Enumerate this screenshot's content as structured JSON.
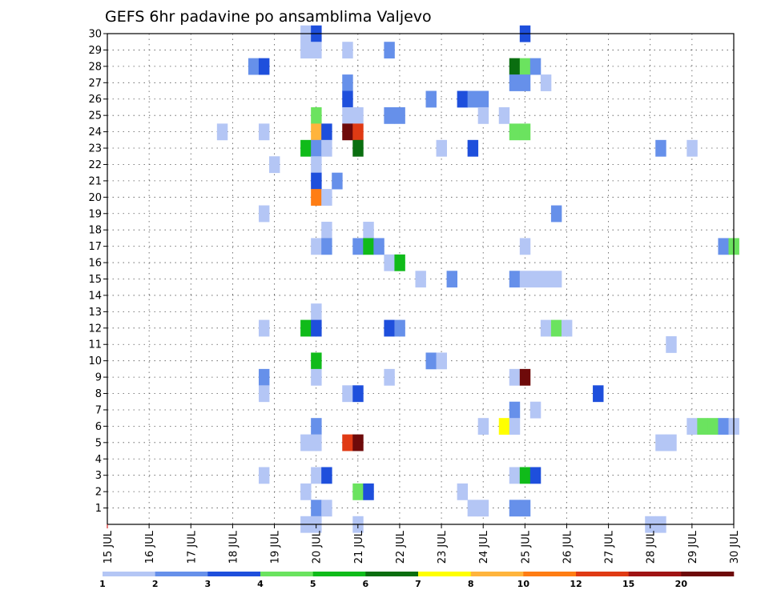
{
  "chart_data": {
    "type": "heatmap",
    "title": "GEFS 6hr padavine po ansamblima Valjevo",
    "x_tick_labels": [
      "15 JUL",
      "16 JUL",
      "17 JUL",
      "18 JUL",
      "19 JUL",
      "20 JUL",
      "21 JUL",
      "22 JUL",
      "23 JUL",
      "24 JUL",
      "25 JUL",
      "26 JUL",
      "27 JUL",
      "28 JUL",
      "29 JUL",
      "30 JUL"
    ],
    "x_range_days": [
      0,
      15
    ],
    "y_tick_labels": [
      1,
      2,
      3,
      4,
      5,
      6,
      7,
      8,
      9,
      10,
      11,
      12,
      13,
      14,
      15,
      16,
      17,
      18,
      19,
      20,
      21,
      22,
      23,
      24,
      25,
      26,
      27,
      28,
      29,
      30
    ],
    "y_range": [
      0,
      30
    ],
    "grid": true,
    "colorbar": {
      "labels": [
        1,
        2,
        3,
        4,
        5,
        6,
        7,
        8,
        10,
        12,
        15,
        20
      ],
      "colors": [
        "#b4c6f5",
        "#6690ea",
        "#1e4fdc",
        "#6be35f",
        "#10bb1a",
        "#0a6e10",
        "#ffff00",
        "#ffb43c",
        "#ff7d14",
        "#e03a14",
        "#a01414",
        "#6e0a0a"
      ]
    },
    "cells": [
      [
        30,
        4.75,
        0
      ],
      [
        30,
        5.0,
        2
      ],
      [
        30,
        10.0,
        2
      ],
      [
        29,
        4.75,
        0
      ],
      [
        29,
        5.0,
        0
      ],
      [
        29,
        5.75,
        0
      ],
      [
        29,
        6.75,
        1
      ],
      [
        28,
        3.5,
        1
      ],
      [
        28,
        3.75,
        2
      ],
      [
        28,
        9.75,
        5
      ],
      [
        28,
        10.0,
        3
      ],
      [
        28,
        10.25,
        1
      ],
      [
        27,
        5.75,
        1
      ],
      [
        27,
        9.75,
        1
      ],
      [
        27,
        10.0,
        1
      ],
      [
        27,
        10.5,
        0
      ],
      [
        26,
        5.75,
        2
      ],
      [
        26,
        7.75,
        1
      ],
      [
        26,
        8.5,
        2
      ],
      [
        26,
        8.75,
        1
      ],
      [
        26,
        9.0,
        1
      ],
      [
        25,
        5.0,
        3
      ],
      [
        25,
        5.75,
        0
      ],
      [
        25,
        6.0,
        0
      ],
      [
        25,
        6.75,
        1
      ],
      [
        25,
        7.0,
        1
      ],
      [
        25,
        9.0,
        0
      ],
      [
        25,
        9.5,
        0
      ],
      [
        24,
        2.75,
        0
      ],
      [
        24,
        3.75,
        0
      ],
      [
        24,
        5.0,
        7
      ],
      [
        24,
        5.25,
        2
      ],
      [
        24,
        5.75,
        11
      ],
      [
        24,
        6.0,
        9
      ],
      [
        24,
        9.75,
        3
      ],
      [
        24,
        10.0,
        3
      ],
      [
        23,
        4.75,
        4
      ],
      [
        23,
        5.0,
        1
      ],
      [
        23,
        5.25,
        0
      ],
      [
        23,
        6.0,
        5
      ],
      [
        23,
        8.0,
        0
      ],
      [
        23,
        8.75,
        2
      ],
      [
        23,
        13.25,
        1
      ],
      [
        23,
        14.0,
        0
      ],
      [
        22,
        4.0,
        0
      ],
      [
        22,
        5.0,
        0
      ],
      [
        21,
        5.0,
        2
      ],
      [
        21,
        5.5,
        1
      ],
      [
        20,
        5.0,
        8
      ],
      [
        20,
        5.25,
        0
      ],
      [
        19,
        3.75,
        0
      ],
      [
        19,
        10.75,
        1
      ],
      [
        18,
        5.25,
        0
      ],
      [
        18,
        6.25,
        0
      ],
      [
        17,
        5.0,
        0
      ],
      [
        17,
        5.25,
        1
      ],
      [
        17,
        6.0,
        1
      ],
      [
        17,
        6.25,
        4
      ],
      [
        17,
        6.5,
        1
      ],
      [
        17,
        10.0,
        0
      ],
      [
        17,
        14.75,
        1
      ],
      [
        17,
        15.0,
        3
      ],
      [
        16,
        6.75,
        0
      ],
      [
        16,
        7.0,
        4
      ],
      [
        15,
        7.5,
        0
      ],
      [
        15,
        8.25,
        1
      ],
      [
        15,
        9.75,
        1
      ],
      [
        15,
        10.0,
        0
      ],
      [
        15,
        10.25,
        0
      ],
      [
        15,
        10.5,
        0
      ],
      [
        15,
        10.75,
        0
      ],
      [
        13,
        5.0,
        0
      ],
      [
        12,
        3.75,
        0
      ],
      [
        12,
        4.75,
        4
      ],
      [
        12,
        5.0,
        2
      ],
      [
        12,
        6.75,
        2
      ],
      [
        12,
        7.0,
        1
      ],
      [
        12,
        10.5,
        0
      ],
      [
        12,
        10.75,
        3
      ],
      [
        12,
        11.0,
        0
      ],
      [
        11,
        13.5,
        0
      ],
      [
        10,
        5.0,
        4
      ],
      [
        10,
        7.75,
        1
      ],
      [
        10,
        8.0,
        0
      ],
      [
        9,
        3.75,
        1
      ],
      [
        9,
        5.0,
        0
      ],
      [
        9,
        6.75,
        0
      ],
      [
        9,
        9.75,
        0
      ],
      [
        9,
        10.0,
        11
      ],
      [
        8,
        3.75,
        0
      ],
      [
        8,
        5.75,
        0
      ],
      [
        8,
        6.0,
        2
      ],
      [
        8,
        11.75,
        2
      ],
      [
        7,
        9.75,
        1
      ],
      [
        7,
        10.25,
        0
      ],
      [
        6,
        5.0,
        1
      ],
      [
        6,
        9.0,
        0
      ],
      [
        6,
        9.5,
        6
      ],
      [
        6,
        9.75,
        0
      ],
      [
        6,
        14.0,
        0
      ],
      [
        6,
        14.25,
        3
      ],
      [
        6,
        14.5,
        3
      ],
      [
        6,
        14.75,
        1
      ],
      [
        6,
        15.0,
        0
      ],
      [
        5,
        4.75,
        0
      ],
      [
        5,
        5.0,
        0
      ],
      [
        5,
        5.75,
        9
      ],
      [
        5,
        6.0,
        11
      ],
      [
        5,
        13.25,
        0
      ],
      [
        5,
        13.5,
        0
      ],
      [
        3,
        3.75,
        0
      ],
      [
        3,
        5.0,
        0
      ],
      [
        3,
        5.25,
        2
      ],
      [
        3,
        9.75,
        0
      ],
      [
        3,
        10.0,
        4
      ],
      [
        3,
        10.25,
        2
      ],
      [
        2,
        4.75,
        0
      ],
      [
        2,
        6.0,
        3
      ],
      [
        2,
        6.25,
        2
      ],
      [
        2,
        8.5,
        0
      ],
      [
        1,
        5.0,
        1
      ],
      [
        1,
        5.25,
        0
      ],
      [
        1,
        8.75,
        0
      ],
      [
        1,
        9.0,
        0
      ],
      [
        1,
        9.75,
        1
      ],
      [
        1,
        10.0,
        1
      ],
      [
        0,
        4.75,
        0
      ],
      [
        0,
        5.0,
        0
      ],
      [
        0,
        6.0,
        0
      ],
      [
        0,
        13.0,
        0
      ],
      [
        0,
        13.25,
        0
      ]
    ]
  }
}
